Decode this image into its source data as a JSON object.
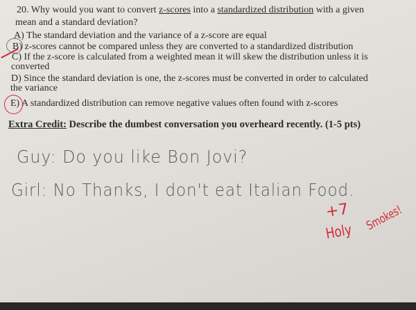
{
  "question": {
    "number": "20.",
    "text_pre": "Why would you want to convert ",
    "term1": "z-scores",
    "text_mid": " into a ",
    "term2": "standardized distribution",
    "text_post": " with a given",
    "line2": "mean and a standard deviation?",
    "options": [
      {
        "label": "A)",
        "text": "The standard deviation and the variance of a z-score are equal"
      },
      {
        "label": "B)",
        "text": "z-scores cannot be compared unless they are converted to a standardized distribution"
      },
      {
        "label": "C)",
        "text": "If the z-score is calculated from a weighted mean it will skew the distribution unless it is",
        "text2": "converted"
      },
      {
        "label": "D)",
        "text": "Since the standard deviation is one, the z-scores must be converted in order to calculated",
        "text2": "the variance"
      },
      {
        "label": "E)",
        "text": "A standardized distribution can remove negative values often found with z-scores"
      }
    ],
    "circled_options": [
      "B",
      "E"
    ]
  },
  "extra_credit": {
    "label": "Extra Credit:",
    "prompt": " Describe the dumbest conversation you overheard recently. (1-5 pts)"
  },
  "answer": {
    "line1": "Guy: Do you like Bon Jovi?",
    "line2": "Girl: No Thanks, I don't eat Italian Food."
  },
  "grading": {
    "score": "+7",
    "comment1": "Holy",
    "comment2": "Smokes!",
    "ink_color": "#d1283a"
  }
}
